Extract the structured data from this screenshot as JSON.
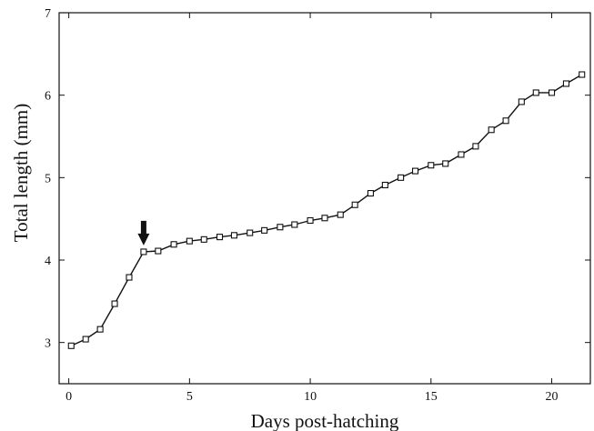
{
  "chart_data": {
    "type": "line",
    "title": "",
    "xlabel": "Days post-hatching",
    "ylabel": "Total length (mm)",
    "xlim": [
      -0.4,
      21.6
    ],
    "ylim": [
      2.5,
      7
    ],
    "xticks": [
      0,
      5,
      10,
      15,
      20
    ],
    "yticks": [
      3,
      4,
      5,
      6,
      7
    ],
    "grid": false,
    "legend": "none",
    "marker": "open-square",
    "line_color": "#111111",
    "series": [
      {
        "x": [
          0.1,
          0.7,
          1.3,
          1.9,
          2.5,
          3.1,
          3.7,
          4.35,
          5.0,
          5.6,
          6.25,
          6.85,
          7.5,
          8.1,
          8.75,
          9.35,
          10.0,
          10.6,
          11.25,
          11.85,
          12.5,
          13.1,
          13.75,
          14.35,
          15.0,
          15.6,
          16.25,
          16.85,
          17.5,
          18.1,
          18.75,
          19.35,
          20.0,
          20.6,
          21.25
        ],
        "y": [
          2.96,
          3.04,
          3.16,
          3.47,
          3.79,
          4.1,
          4.11,
          4.19,
          4.23,
          4.25,
          4.28,
          4.3,
          4.33,
          4.36,
          4.4,
          4.43,
          4.48,
          4.51,
          4.55,
          4.67,
          4.81,
          4.91,
          5.0,
          5.08,
          5.15,
          5.17,
          5.28,
          5.38,
          5.58,
          5.69,
          5.92,
          6.03,
          6.03,
          6.14,
          6.25
        ]
      }
    ],
    "annotations": [
      {
        "type": "arrow",
        "direction": "down",
        "x": 3.1,
        "y": 4.1
      }
    ]
  }
}
